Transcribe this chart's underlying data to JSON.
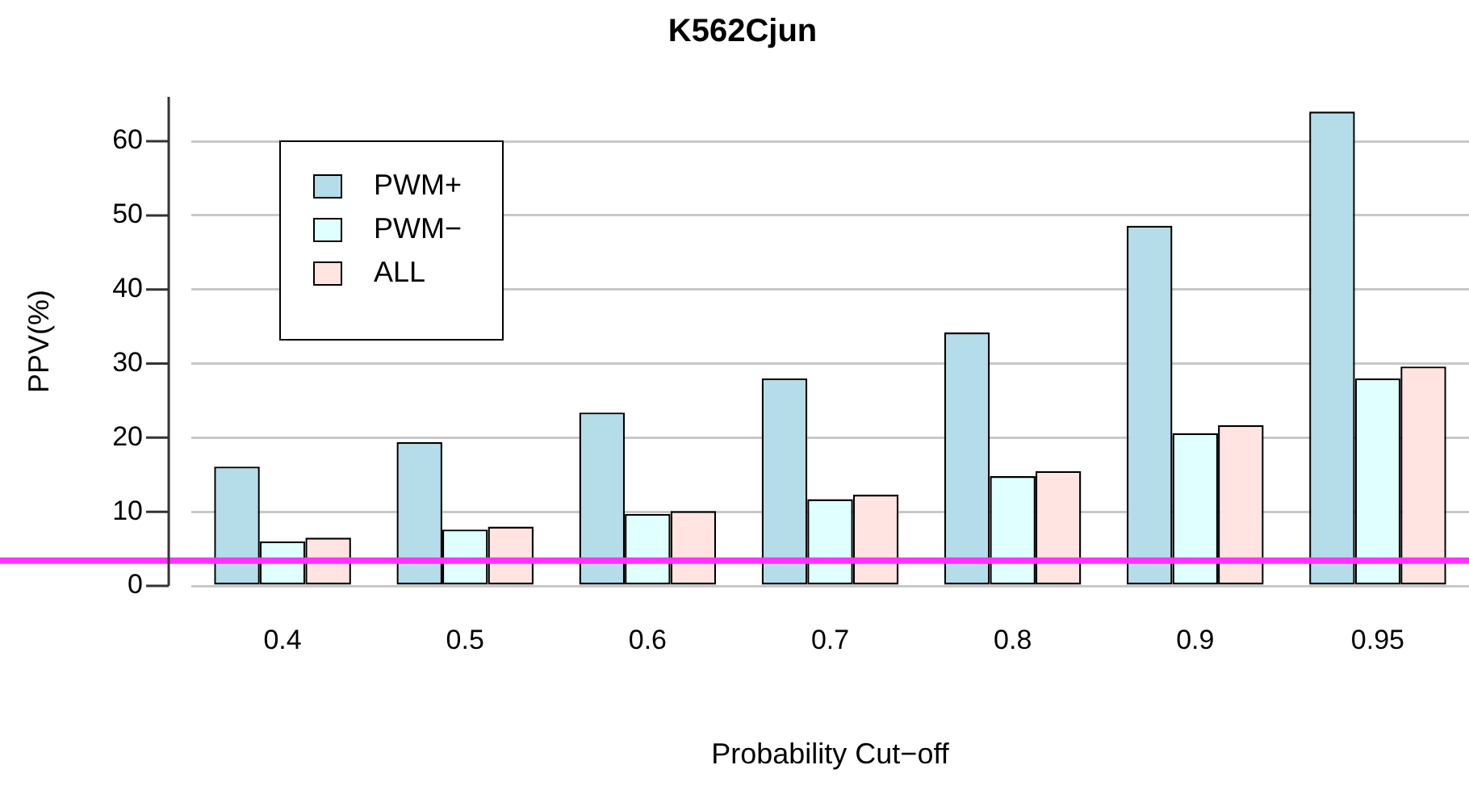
{
  "chart_data": {
    "type": "bar",
    "title": "K562Cjun",
    "xlabel": "Probability Cut−off",
    "ylabel": "PPV(%)",
    "categories": [
      "0.4",
      "0.5",
      "0.6",
      "0.7",
      "0.8",
      "0.9",
      "0.95"
    ],
    "series": [
      {
        "name": "PWM+",
        "color": "#b4dde9",
        "values": [
          16.1,
          19.4,
          23.4,
          28,
          34.2,
          48.6,
          64
        ]
      },
      {
        "name": "PWM−",
        "color": "#e0ffff",
        "values": [
          6,
          7.6,
          9.7,
          11.7,
          14.8,
          20.6,
          28
        ]
      },
      {
        "name": "ALL",
        "color": "#ffe4e1",
        "values": [
          6.5,
          8,
          10.1,
          12.3,
          15.5,
          21.7,
          29.6
        ]
      }
    ],
    "ylim": [
      0,
      66
    ],
    "yticks": [
      0,
      10,
      20,
      30,
      40,
      50,
      60
    ],
    "grid": "y",
    "legend": "top left",
    "ref_lines": [
      {
        "axis": "y",
        "value": 3.4,
        "color": "#ff33ff"
      }
    ]
  }
}
